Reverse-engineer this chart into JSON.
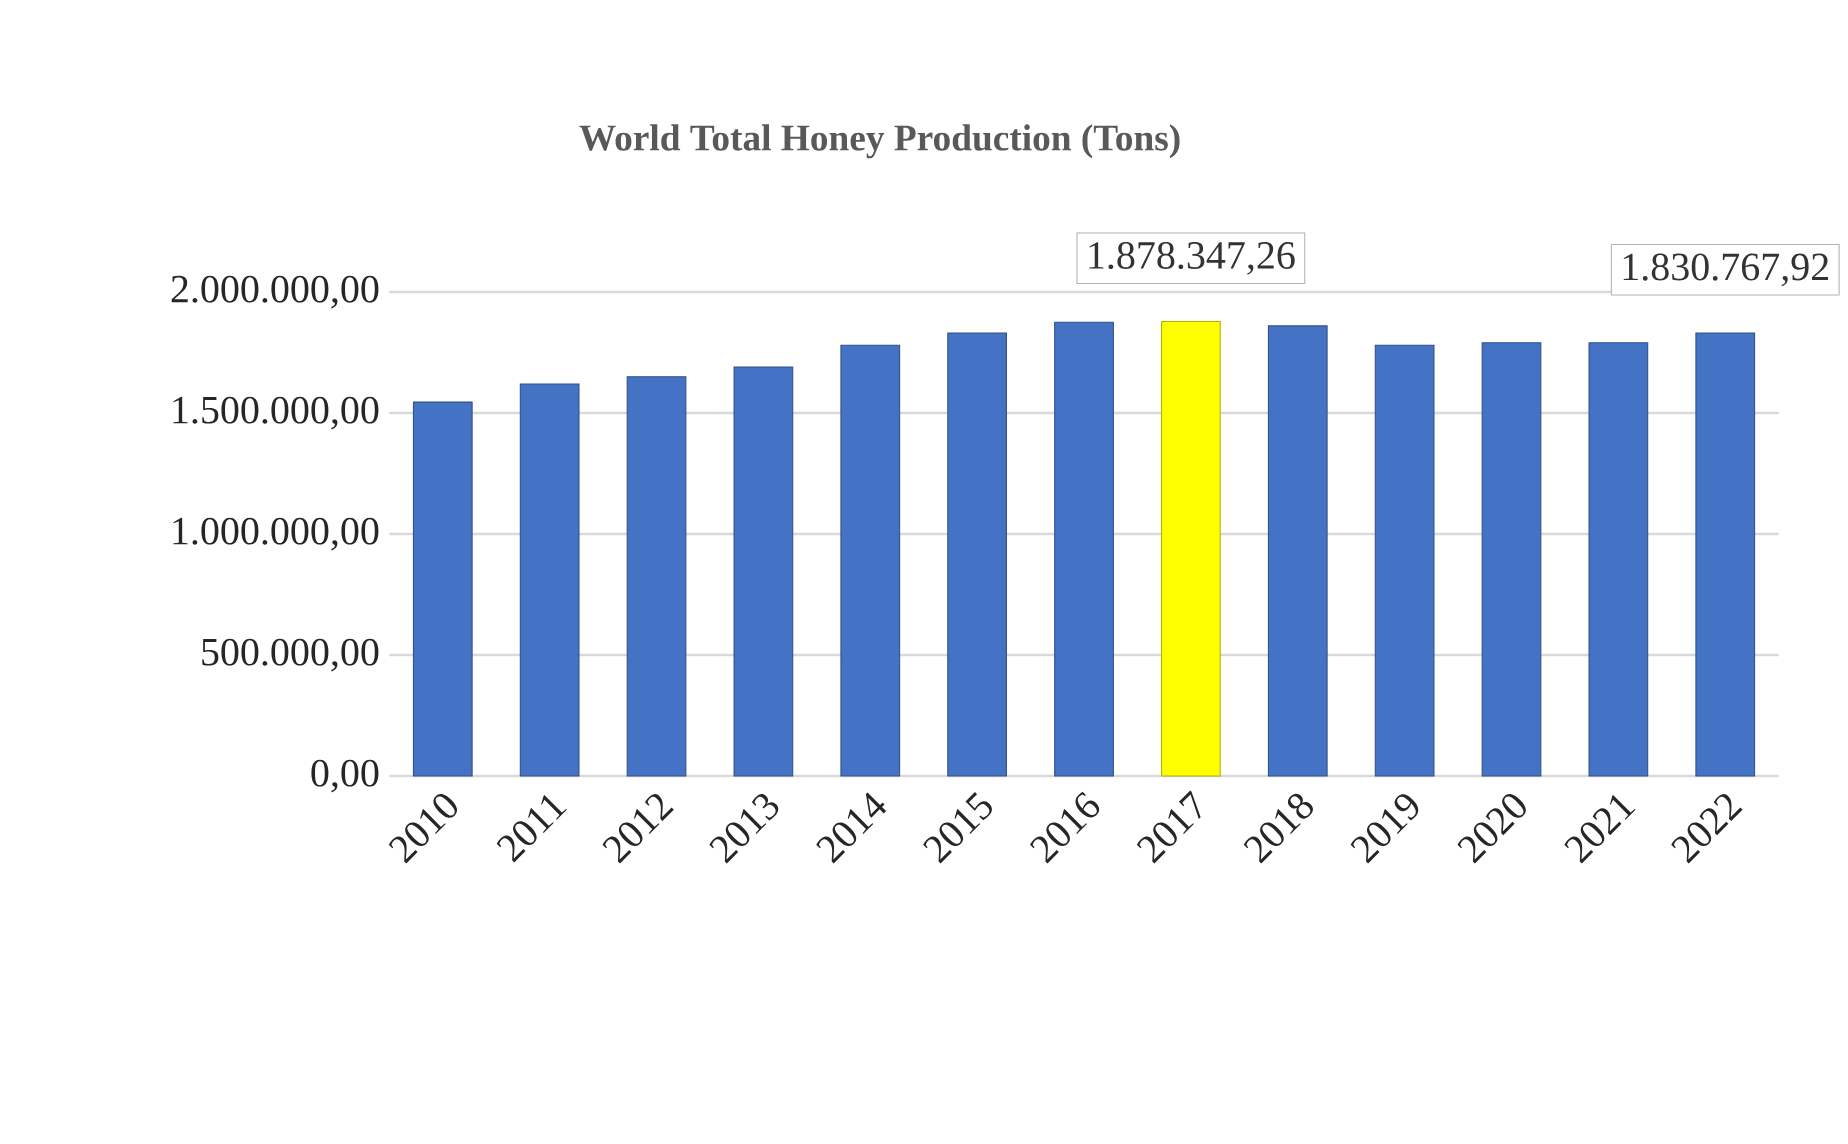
{
  "chart_data": {
    "type": "bar",
    "title": "World Total Honey Production (Tons)",
    "categories": [
      "2010",
      "2011",
      "2012",
      "2013",
      "2014",
      "2015",
      "2016",
      "2017",
      "2018",
      "2019",
      "2020",
      "2021",
      "2022"
    ],
    "values": [
      1545000,
      1620000,
      1650000,
      1690000,
      1780000,
      1830000,
      1875000,
      1878347.26,
      1860000,
      1780000,
      1790000,
      1790000,
      1830767.92
    ],
    "colors": [
      "#4472c4",
      "#4472c4",
      "#4472c4",
      "#4472c4",
      "#4472c4",
      "#4472c4",
      "#4472c4",
      "#ffff00",
      "#4472c4",
      "#4472c4",
      "#4472c4",
      "#4472c4",
      "#4472c4"
    ],
    "value_labels": [
      null,
      null,
      null,
      null,
      null,
      null,
      null,
      "1.878.347,26",
      null,
      null,
      null,
      null,
      "1.830.767,92"
    ],
    "ylim": [
      0,
      2000000
    ],
    "yticks": [
      {
        "value": 0,
        "label": "0,00"
      },
      {
        "value": 500000,
        "label": "500.000,00"
      },
      {
        "value": 1000000,
        "label": "1.000.000,00"
      },
      {
        "value": 1500000,
        "label": "1.500.000,00"
      },
      {
        "value": 2000000,
        "label": "2.000.000,00"
      }
    ],
    "grid": "y"
  }
}
